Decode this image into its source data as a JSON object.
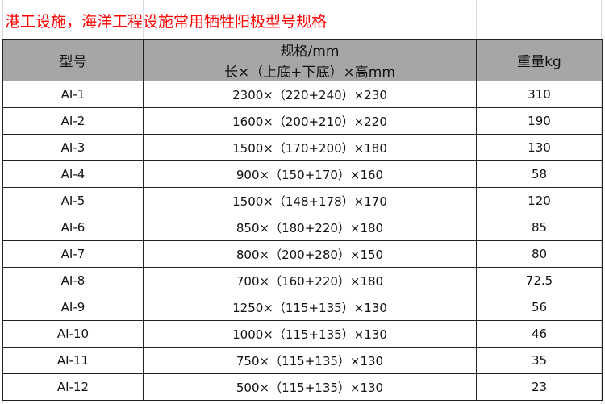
{
  "title": "港工设施，海洋工程设施常用牺牲阳极型号规格",
  "colors": {
    "title": "#ff0000",
    "header_bg": "#a6a6a6"
  },
  "table": {
    "headers": {
      "model": "型号",
      "spec": "规格/mm",
      "spec_sub": "长×（上底+下底）×高mm",
      "weight": "重量kg"
    },
    "rows": [
      {
        "model": "AI-1",
        "spec": "2300×（220+240）×230",
        "weight": "310"
      },
      {
        "model": "AI-2",
        "spec": "1600×（200+210）×220",
        "weight": "190"
      },
      {
        "model": "AI-3",
        "spec": "1500×（170+200）×180",
        "weight": "130"
      },
      {
        "model": "AI-4",
        "spec": "900×（150+170）×160",
        "weight": "58"
      },
      {
        "model": "AI-5",
        "spec": "1500×（148+178）×170",
        "weight": "120"
      },
      {
        "model": "AI-6",
        "spec": "850×（180+220）×180",
        "weight": "85"
      },
      {
        "model": "AI-7",
        "spec": "800×（200+280）×150",
        "weight": "80"
      },
      {
        "model": "AI-8",
        "spec": "700×（160+220）×180",
        "weight": "72.5"
      },
      {
        "model": "AI-9",
        "spec": "1250×（115+135）×130",
        "weight": "56"
      },
      {
        "model": "AI-10",
        "spec": "1000×（115+135）×130",
        "weight": "46"
      },
      {
        "model": "AI-11",
        "spec": "750×（115+135）×130",
        "weight": "35"
      },
      {
        "model": "AI-12",
        "spec": "500×（115+135）×130",
        "weight": "23"
      }
    ]
  }
}
